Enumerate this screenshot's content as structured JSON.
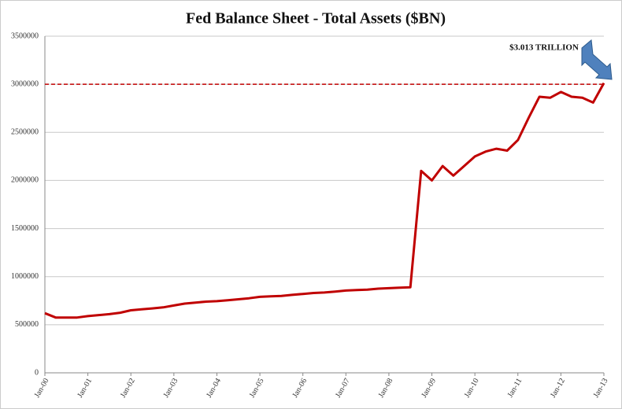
{
  "chart_data": {
    "type": "line",
    "title": "Fed Balance Sheet - Total Assets ($BN)",
    "annotation": "$3.013 TRILLION",
    "reference_line": 3000000,
    "categories": [
      "Jan-00",
      null,
      null,
      null,
      "Jan-01",
      null,
      null,
      null,
      "Jan-02",
      null,
      null,
      null,
      "Jan-03",
      null,
      null,
      null,
      "Jan-04",
      null,
      null,
      null,
      "Jan-05",
      null,
      null,
      null,
      "Jan-06",
      null,
      null,
      null,
      "Jan-07",
      null,
      null,
      null,
      "Jan-08",
      null,
      null,
      null,
      "Jan-09",
      null,
      null,
      null,
      "Jan-10",
      null,
      null,
      null,
      "Jan-11",
      null,
      null,
      null,
      "Jan-12",
      null,
      null,
      null,
      "Jan-13"
    ],
    "series": [
      {
        "color": "#c00000",
        "values": [
          620000,
          575000,
          575000,
          575000,
          590000,
          600000,
          610000,
          625000,
          650000,
          660000,
          670000,
          680000,
          700000,
          720000,
          730000,
          740000,
          745000,
          755000,
          765000,
          775000,
          790000,
          795000,
          800000,
          810000,
          820000,
          830000,
          835000,
          845000,
          855000,
          860000,
          865000,
          875000,
          880000,
          885000,
          890000,
          2100000,
          2000000,
          2150000,
          2050000,
          2150000,
          2250000,
          2300000,
          2330000,
          2310000,
          2420000,
          2650000,
          2870000,
          2860000,
          2920000,
          2870000,
          2860000,
          2810000,
          3013000
        ]
      }
    ],
    "ylim": [
      0,
      3500000
    ],
    "yticks": [
      0,
      500000,
      1000000,
      1500000,
      2000000,
      2500000,
      3000000,
      3500000
    ],
    "grid": true
  }
}
